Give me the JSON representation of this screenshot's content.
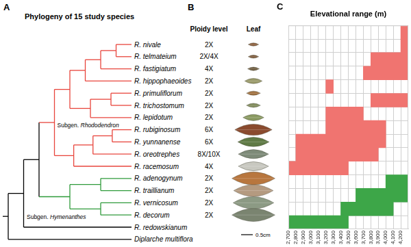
{
  "panel_a": {
    "label": "A",
    "title": "Phylogeny of 15 study species",
    "tree": {
      "children": [
        {
          "children": [
            {
              "children": [
                {
                  "label": "Subgen. Rhododendron",
                  "color": "#e8453c",
                  "children": [
                    {
                      "children": [
                        {
                          "children": [
                            {
                              "children": [
                                {
                                  "children": [
                                    {
                                      "name": "R. nivale",
                                      "ploidy": "2X",
                                      "leaf_length_cm": 0.45,
                                      "leaf_color": "#8b5e3c"
                                    },
                                    {
                                      "name": "R. telmateium",
                                      "ploidy": "2X/4X",
                                      "leaf_length_cm": 0.45,
                                      "leaf_color": "#7d5a3a"
                                    }
                                  ]
                                },
                                {
                                  "name": "R. fastigiatum",
                                  "ploidy": "4X",
                                  "leaf_length_cm": 0.5,
                                  "leaf_color": "#6e5b3e"
                                }
                              ]
                            },
                            {
                              "name": "R. hippophaeoides",
                              "ploidy": "2X",
                              "leaf_length_cm": 0.75,
                              "leaf_color": "#9a9a6a"
                            }
                          ]
                        },
                        {
                          "children": [
                            {
                              "children": [
                                {
                                  "name": "R. primuliflorum",
                                  "ploidy": "2X",
                                  "leaf_length_cm": 0.6,
                                  "leaf_color": "#a0703f"
                                },
                                {
                                  "name": "R. trichostomum",
                                  "ploidy": "2X",
                                  "leaf_length_cm": 0.6,
                                  "leaf_color": "#7f8a5a"
                                }
                              ]
                            },
                            {
                              "name": "R. lepidotum",
                              "ploidy": "2X",
                              "leaf_length_cm": 0.9,
                              "leaf_color": "#8a9a62"
                            }
                          ]
                        }
                      ]
                    },
                    {
                      "children": [
                        {
                          "children": [
                            {
                              "children": [
                                {
                                  "name": "R. rubiginosum",
                                  "ploidy": "6X",
                                  "leaf_length_cm": 1.6,
                                  "leaf_color": "#8a4a2e"
                                },
                                {
                                  "name": "R. yunnanense",
                                  "ploidy": "6X",
                                  "leaf_length_cm": 1.35,
                                  "leaf_color": "#5f7a45"
                                }
                              ]
                            },
                            {
                              "name": "R. oreotrephes",
                              "ploidy": "8X/10X",
                              "leaf_length_cm": 1.3,
                              "leaf_color": "#7d8a78"
                            }
                          ]
                        },
                        {
                          "name": "R. racemosum",
                          "ploidy": "4X",
                          "leaf_length_cm": 1.3,
                          "leaf_color": "#c8c8c0"
                        }
                      ]
                    }
                  ]
                },
                {
                  "label": "Subgen. Hymenanthes",
                  "color": "#2e9a3a",
                  "children": [
                    {
                      "children": [
                        {
                          "name": "R. adenogynum",
                          "ploidy": "2X",
                          "leaf_length_cm": 1.85,
                          "leaf_color": "#b8763e"
                        },
                        {
                          "name": "R. traillianum",
                          "ploidy": "2X",
                          "leaf_length_cm": 1.7,
                          "leaf_color": "#b49a80"
                        }
                      ]
                    },
                    {
                      "children": [
                        {
                          "name": "R. vernicosum",
                          "ploidy": "2X",
                          "leaf_length_cm": 1.75,
                          "leaf_color": "#8c9a84"
                        },
                        {
                          "name": "R. decorum",
                          "ploidy": "2X",
                          "leaf_length_cm": 1.85,
                          "leaf_color": "#7a8470"
                        }
                      ]
                    }
                  ]
                }
              ]
            },
            {
              "name": "R. redowskianum"
            }
          ]
        },
        {
          "name": "Diplarche multiflora"
        }
      ]
    }
  },
  "panel_b": {
    "label": "B",
    "columns": [
      "Ploidy level",
      "Leaf"
    ],
    "scale_bar": {
      "value": 0.5,
      "label": "0.5cm"
    }
  },
  "panel_c": {
    "label": "C"
  },
  "chart_data": {
    "type": "bar",
    "orientation": "horizontal",
    "title": "Elevational range (m)",
    "categories": [
      "R. nivale",
      "R. telmateium",
      "R. fastigiatum",
      "R. hippophaeoides",
      "R. primuliflorum",
      "R. trichostomum",
      "R. lepidotum",
      "R. rubiginosum",
      "R. yunnanense",
      "R. oreotrephes",
      "R. racemosum",
      "R. adenogynum",
      "R. traillianum",
      "R. vernicosum",
      "R. decorum"
    ],
    "values": [
      [
        4200,
        4300
      ],
      [
        4200,
        4300
      ],
      [
        3800,
        4300
      ],
      [
        3700,
        4300
      ],
      [
        3200,
        3300
      ],
      [
        3800,
        4300
      ],
      [
        3200,
        3700
      ],
      [
        3200,
        4000
      ],
      [
        2800,
        4000
      ],
      [
        2800,
        3900
      ],
      [
        2700,
        3500
      ],
      [
        4000,
        4300
      ],
      [
        3600,
        4300
      ],
      [
        3400,
        4100
      ],
      [
        2700,
        3500
      ]
    ],
    "colors": [
      "#f07470",
      "#f07470",
      "#f07470",
      "#f07470",
      "#f07470",
      "#f07470",
      "#f07470",
      "#f07470",
      "#f07470",
      "#f07470",
      "#f07470",
      "#3da648",
      "#3da648",
      "#3da648",
      "#3da648"
    ],
    "xlim": [
      2700,
      4300
    ],
    "xticks": [
      2700,
      2800,
      2900,
      3000,
      3100,
      3200,
      3300,
      3400,
      3500,
      3600,
      3700,
      3800,
      3900,
      4000,
      4100,
      4200
    ],
    "grid": true,
    "tick_labels": "x"
  }
}
